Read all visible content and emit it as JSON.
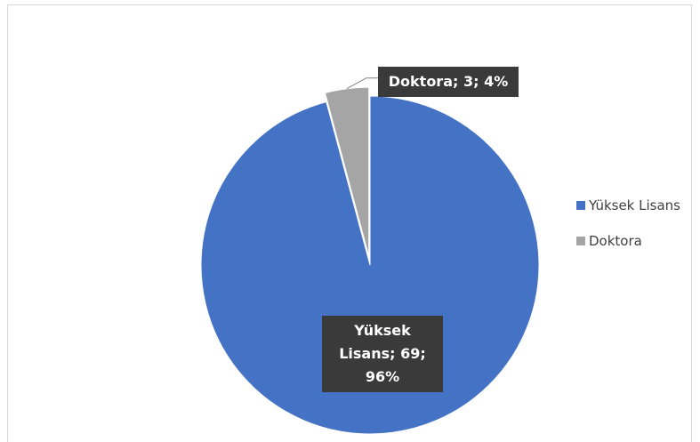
{
  "chart_data": {
    "type": "pie",
    "categories": [
      "Yüksek Lisans",
      "Doktora"
    ],
    "values": [
      69,
      3
    ],
    "value_labels": [
      "Yüksek Lisans; 69; 96%",
      "Doktora; 3; 4%"
    ],
    "colors": [
      "#4472c4",
      "#a5a5a5"
    ],
    "legend": "right"
  }
}
